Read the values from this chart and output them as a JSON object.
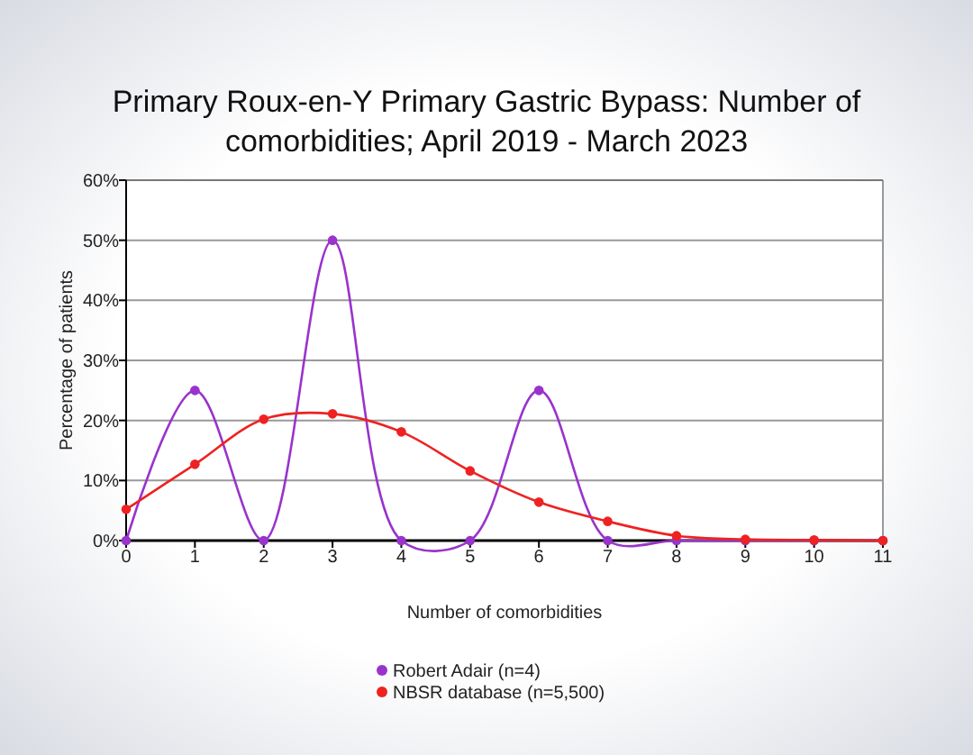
{
  "chart_data": {
    "type": "line",
    "title": "Primary Roux-en-Y Primary Gastric Bypass: Number of comorbidities; April 2019 - March 2023",
    "xlabel": "Number of comorbidities",
    "ylabel": "Percentage of patients",
    "x": [
      0,
      1,
      2,
      3,
      4,
      5,
      6,
      7,
      8,
      9,
      10,
      11
    ],
    "series": [
      {
        "name": "Robert Adair (n=4)",
        "color": "#9933cc",
        "values": [
          0,
          25,
          0,
          50,
          0,
          0,
          25,
          0,
          0,
          0,
          0,
          0
        ]
      },
      {
        "name": "NBSR database (n=5,500)",
        "color": "#ee2222",
        "values": [
          5.2,
          12.7,
          20.2,
          21.1,
          18.1,
          11.6,
          6.4,
          3.2,
          0.8,
          0.2,
          0.1,
          0
        ]
      }
    ],
    "xlim": [
      0,
      11
    ],
    "xticks": [
      0,
      1,
      2,
      3,
      4,
      5,
      6,
      7,
      8,
      9,
      10,
      11
    ],
    "ylim": [
      0,
      60
    ],
    "yticks": [
      {
        "value": 0,
        "label": "0%"
      },
      {
        "value": 10,
        "label": "10%"
      },
      {
        "value": 20,
        "label": "20%"
      },
      {
        "value": 30,
        "label": "30%"
      },
      {
        "value": 40,
        "label": "40%"
      },
      {
        "value": 50,
        "label": "50%"
      },
      {
        "value": 60,
        "label": "60%"
      }
    ],
    "grid": "y",
    "legend": "bottom",
    "marker": "circle"
  }
}
